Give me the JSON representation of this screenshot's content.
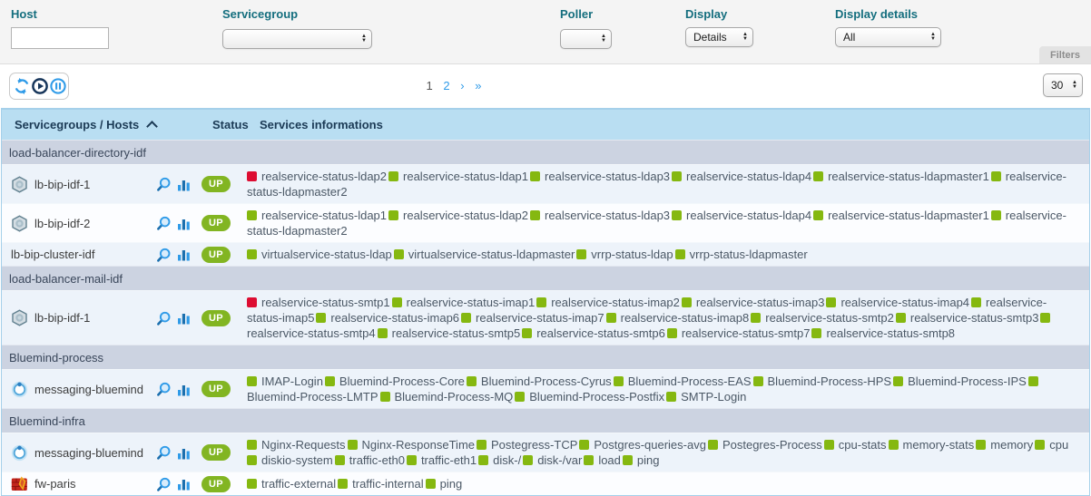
{
  "filters": {
    "host": {
      "label": "Host",
      "value": ""
    },
    "servicegroup": {
      "label": "Servicegroup",
      "value": ""
    },
    "poller": {
      "label": "Poller",
      "value": ""
    },
    "display": {
      "label": "Display",
      "value": "Details"
    },
    "display_details": {
      "label": "Display details",
      "value": "All"
    },
    "tab_label": "Filters"
  },
  "toolbar": {
    "pagination": {
      "current": "1",
      "page2": "2",
      "next": "›",
      "last": "»"
    },
    "page_size": "30"
  },
  "colors": {
    "status_ok": "#85b810",
    "status_critical": "#dd0d32",
    "up_badge": "#82b522",
    "label_teal": "#146e7e",
    "header_bg": "#b9def2",
    "group_bg": "#ccd3e1",
    "link_blue": "#2f9be8"
  },
  "icons": [
    "refresh-icon",
    "play-icon",
    "pause-icon",
    "magnifier-icon",
    "bar-chart-icon",
    "loadbalancer-icon",
    "bluemind-icon",
    "firewall-icon",
    "sort-asc-icon",
    "select-arrows-icon"
  ],
  "table": {
    "headers": [
      "Servicegroups / Hosts",
      "Status",
      "Services informations"
    ],
    "groups": [
      {
        "name": "load-balancer-directory-idf",
        "hosts": [
          {
            "name": "lb-bip-idf-1",
            "icon": "loadbalancer-icon",
            "status": "UP",
            "services": [
              {
                "name": "realservice-status-ldap2",
                "state": "critical"
              },
              {
                "name": "realservice-status-ldap1",
                "state": "ok"
              },
              {
                "name": "realservice-status-ldap3",
                "state": "ok"
              },
              {
                "name": "realservice-status-ldap4",
                "state": "ok"
              },
              {
                "name": "realservice-status-ldapmaster1",
                "state": "ok"
              },
              {
                "name": "realservice-status-ldapmaster2",
                "state": "ok"
              }
            ]
          },
          {
            "name": "lb-bip-idf-2",
            "icon": "loadbalancer-icon",
            "status": "UP",
            "services": [
              {
                "name": "realservice-status-ldap1",
                "state": "ok"
              },
              {
                "name": "realservice-status-ldap2",
                "state": "ok"
              },
              {
                "name": "realservice-status-ldap3",
                "state": "ok"
              },
              {
                "name": "realservice-status-ldap4",
                "state": "ok"
              },
              {
                "name": "realservice-status-ldapmaster1",
                "state": "ok"
              },
              {
                "name": "realservice-status-ldapmaster2",
                "state": "ok"
              }
            ]
          },
          {
            "name": "lb-bip-cluster-idf",
            "icon": null,
            "status": "UP",
            "services": [
              {
                "name": "virtualservice-status-ldap",
                "state": "ok"
              },
              {
                "name": "virtualservice-status-ldapmaster",
                "state": "ok"
              },
              {
                "name": "vrrp-status-ldap",
                "state": "ok"
              },
              {
                "name": "vrrp-status-ldapmaster",
                "state": "ok"
              }
            ]
          }
        ]
      },
      {
        "name": "load-balancer-mail-idf",
        "hosts": [
          {
            "name": "lb-bip-idf-1",
            "icon": "loadbalancer-icon",
            "status": "UP",
            "services": [
              {
                "name": "realservice-status-smtp1",
                "state": "critical"
              },
              {
                "name": "realservice-status-imap1",
                "state": "ok"
              },
              {
                "name": "realservice-status-imap2",
                "state": "ok"
              },
              {
                "name": "realservice-status-imap3",
                "state": "ok"
              },
              {
                "name": "realservice-status-imap4",
                "state": "ok"
              },
              {
                "name": "realservice-status-imap5",
                "state": "ok"
              },
              {
                "name": "realservice-status-imap6",
                "state": "ok"
              },
              {
                "name": "realservice-status-imap7",
                "state": "ok"
              },
              {
                "name": "realservice-status-imap8",
                "state": "ok"
              },
              {
                "name": "realservice-status-smtp2",
                "state": "ok"
              },
              {
                "name": "realservice-status-smtp3",
                "state": "ok"
              },
              {
                "name": "realservice-status-smtp4",
                "state": "ok"
              },
              {
                "name": "realservice-status-smtp5",
                "state": "ok"
              },
              {
                "name": "realservice-status-smtp6",
                "state": "ok"
              },
              {
                "name": "realservice-status-smtp7",
                "state": "ok"
              },
              {
                "name": "realservice-status-smtp8",
                "state": "ok"
              }
            ]
          }
        ]
      },
      {
        "name": "Bluemind-process",
        "hosts": [
          {
            "name": "messaging-bluemind",
            "icon": "bluemind-icon",
            "status": "UP",
            "services": [
              {
                "name": "IMAP-Login",
                "state": "ok"
              },
              {
                "name": "Bluemind-Process-Core",
                "state": "ok"
              },
              {
                "name": "Bluemind-Process-Cyrus",
                "state": "ok"
              },
              {
                "name": "Bluemind-Process-EAS",
                "state": "ok"
              },
              {
                "name": "Bluemind-Process-HPS",
                "state": "ok"
              },
              {
                "name": "Bluemind-Process-IPS",
                "state": "ok"
              },
              {
                "name": "Bluemind-Process-LMTP",
                "state": "ok"
              },
              {
                "name": "Bluemind-Process-MQ",
                "state": "ok"
              },
              {
                "name": "Bluemind-Process-Postfix",
                "state": "ok"
              },
              {
                "name": "SMTP-Login",
                "state": "ok"
              }
            ]
          }
        ]
      },
      {
        "name": "Bluemind-infra",
        "hosts": [
          {
            "name": "messaging-bluemind",
            "icon": "bluemind-icon",
            "status": "UP",
            "services": [
              {
                "name": "Nginx-Requests",
                "state": "ok"
              },
              {
                "name": "Nginx-ResponseTime",
                "state": "ok"
              },
              {
                "name": "Postegress-TCP",
                "state": "ok"
              },
              {
                "name": "Postgres-queries-avg",
                "state": "ok"
              },
              {
                "name": "Postegres-Process",
                "state": "ok"
              },
              {
                "name": "cpu-stats",
                "state": "ok"
              },
              {
                "name": "memory-stats",
                "state": "ok"
              },
              {
                "name": "memory",
                "state": "ok"
              },
              {
                "name": "cpu",
                "state": "ok"
              },
              {
                "name": "diskio-system",
                "state": "ok"
              },
              {
                "name": "traffic-eth0",
                "state": "ok"
              },
              {
                "name": "traffic-eth1",
                "state": "ok"
              },
              {
                "name": "disk-/",
                "state": "ok"
              },
              {
                "name": "disk-/var",
                "state": "ok"
              },
              {
                "name": "load",
                "state": "ok"
              },
              {
                "name": "ping",
                "state": "ok"
              }
            ]
          },
          {
            "name": "fw-paris",
            "icon": "firewall-icon",
            "status": "UP",
            "services": [
              {
                "name": "traffic-external",
                "state": "ok"
              },
              {
                "name": "traffic-internal",
                "state": "ok"
              },
              {
                "name": "ping",
                "state": "ok"
              }
            ]
          }
        ]
      }
    ]
  }
}
